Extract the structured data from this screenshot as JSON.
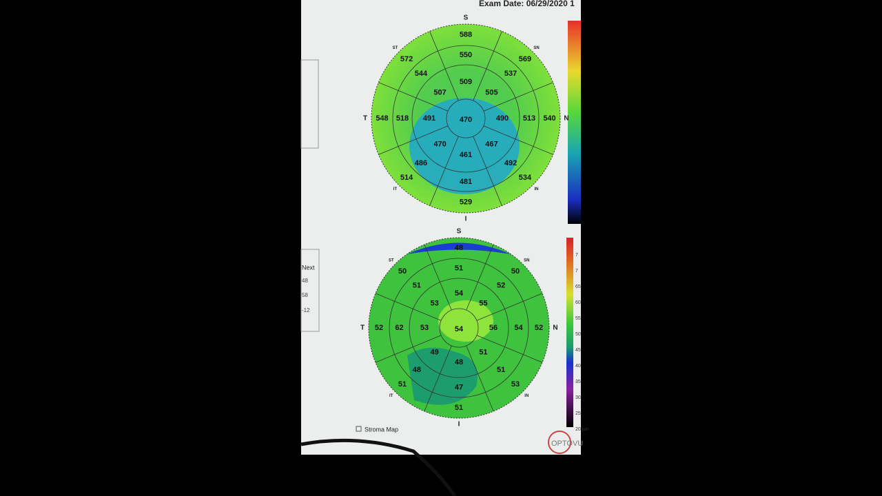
{
  "header": {
    "exam_date": "Exam Date: 06/29/2020 1"
  },
  "maps": [
    {
      "directions": {
        "s": "S",
        "sn": "SN",
        "n": "N",
        "in": "IN",
        "i": "I",
        "it": "IT",
        "t": "T",
        "st": "ST"
      },
      "center": 470,
      "inner": [
        509,
        505,
        490,
        467,
        461,
        470,
        491,
        507
      ],
      "middle": [
        550,
        537,
        513,
        492,
        481,
        486,
        518,
        544
      ],
      "outer": [
        588,
        569,
        540,
        534,
        529,
        514,
        548,
        572
      ]
    },
    {
      "directions": {
        "s": "S",
        "sn": "SN",
        "n": "N",
        "in": "IN",
        "i": "I",
        "it": "IT",
        "t": "T",
        "st": "ST"
      },
      "center": 54,
      "inner": [
        54,
        55,
        56,
        51,
        48,
        49,
        53,
        53
      ],
      "middle": [
        51,
        52,
        54,
        51,
        47,
        48,
        62,
        51
      ],
      "outer": [
        48,
        50,
        52,
        53,
        51,
        51,
        52,
        50
      ]
    }
  ],
  "left_panel": {
    "header": "Next",
    "rows": [
      "48",
      "58",
      "-12"
    ]
  },
  "scale_labels": [
    "7",
    "7",
    "65",
    "60",
    "55",
    "50",
    "45",
    "40",
    "35",
    "30",
    "25",
    "20 µm"
  ],
  "stroma_map": "Stroma Map",
  "logo": "OPTOVU"
}
